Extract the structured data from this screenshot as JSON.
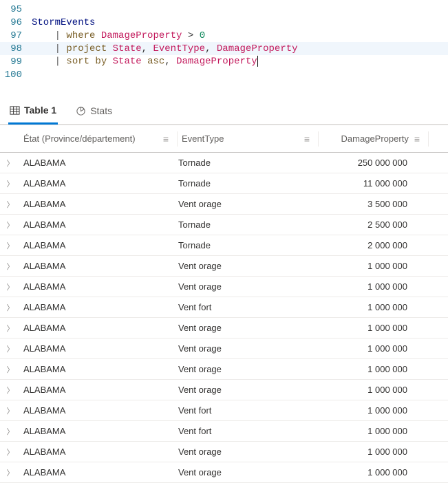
{
  "editor": {
    "lines": [
      {
        "num": 95,
        "highlight": false,
        "tokens": []
      },
      {
        "num": 96,
        "highlight": false,
        "tokens": [
          {
            "t": "StormEvents",
            "c": "tok-ident"
          }
        ]
      },
      {
        "num": 97,
        "highlight": false,
        "tokens": [
          {
            "t": "    ",
            "c": ""
          },
          {
            "t": "|",
            "c": "tok-pipe"
          },
          {
            "t": " ",
            "c": ""
          },
          {
            "t": "where",
            "c": "tok-kw"
          },
          {
            "t": " ",
            "c": ""
          },
          {
            "t": "DamageProperty",
            "c": "tok-col"
          },
          {
            "t": " > ",
            "c": "tok-punc"
          },
          {
            "t": "0",
            "c": "tok-num"
          }
        ]
      },
      {
        "num": 98,
        "highlight": true,
        "tokens": [
          {
            "t": "    ",
            "c": ""
          },
          {
            "t": "|",
            "c": "tok-pipe"
          },
          {
            "t": " ",
            "c": ""
          },
          {
            "t": "project",
            "c": "tok-kw"
          },
          {
            "t": " ",
            "c": ""
          },
          {
            "t": "State",
            "c": "tok-col"
          },
          {
            "t": ", ",
            "c": "tok-punc"
          },
          {
            "t": "EventType",
            "c": "tok-col"
          },
          {
            "t": ", ",
            "c": "tok-punc"
          },
          {
            "t": "DamageProperty",
            "c": "tok-col"
          }
        ]
      },
      {
        "num": 99,
        "highlight": false,
        "cursorAfter": true,
        "tokens": [
          {
            "t": "    ",
            "c": ""
          },
          {
            "t": "|",
            "c": "tok-pipe"
          },
          {
            "t": " ",
            "c": ""
          },
          {
            "t": "sort by",
            "c": "tok-kw"
          },
          {
            "t": " ",
            "c": ""
          },
          {
            "t": "State",
            "c": "tok-col"
          },
          {
            "t": " ",
            "c": ""
          },
          {
            "t": "asc",
            "c": "tok-kw"
          },
          {
            "t": ", ",
            "c": "tok-punc"
          },
          {
            "t": "DamageProperty",
            "c": "tok-col"
          }
        ]
      },
      {
        "num": 100,
        "highlight": false,
        "tokens": []
      }
    ]
  },
  "tabs": {
    "table_label": "Table 1",
    "stats_label": "Stats"
  },
  "grid": {
    "columns": {
      "state": "État (Province/département)",
      "event": "EventType",
      "damage": "DamageProperty"
    },
    "rows": [
      {
        "state": "ALABAMA",
        "event": "Tornade",
        "damage": "250 000 000"
      },
      {
        "state": "ALABAMA",
        "event": "Tornade",
        "damage": "11 000 000"
      },
      {
        "state": "ALABAMA",
        "event": "Vent orage",
        "damage": "3 500 000"
      },
      {
        "state": "ALABAMA",
        "event": "Tornade",
        "damage": "2 500 000"
      },
      {
        "state": "ALABAMA",
        "event": "Tornade",
        "damage": "2 000 000"
      },
      {
        "state": "ALABAMA",
        "event": "Vent orage",
        "damage": "1 000 000"
      },
      {
        "state": "ALABAMA",
        "event": "Vent orage",
        "damage": "1 000 000"
      },
      {
        "state": "ALABAMA",
        "event": "Vent fort",
        "damage": "1 000 000"
      },
      {
        "state": "ALABAMA",
        "event": "Vent orage",
        "damage": "1 000 000"
      },
      {
        "state": "ALABAMA",
        "event": "Vent orage",
        "damage": "1 000 000"
      },
      {
        "state": "ALABAMA",
        "event": "Vent orage",
        "damage": "1 000 000"
      },
      {
        "state": "ALABAMA",
        "event": "Vent orage",
        "damage": "1 000 000"
      },
      {
        "state": "ALABAMA",
        "event": "Vent fort",
        "damage": "1 000 000"
      },
      {
        "state": "ALABAMA",
        "event": "Vent fort",
        "damage": "1 000 000"
      },
      {
        "state": "ALABAMA",
        "event": "Vent orage",
        "damage": "1 000 000"
      },
      {
        "state": "ALABAMA",
        "event": "Vent orage",
        "damage": "1 000 000"
      }
    ]
  },
  "colors": {
    "accent": "#0078d4",
    "gutter": "#237893",
    "keyword": "#795e26",
    "column": "#c2185b",
    "identifier": "#001080",
    "number": "#098658"
  }
}
